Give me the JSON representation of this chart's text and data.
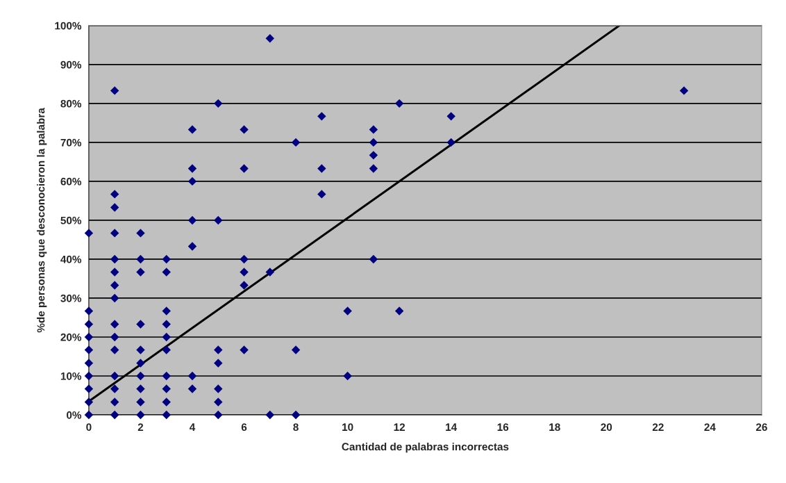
{
  "chart_data": {
    "type": "scatter",
    "xlabel": "Cantidad de palabras incorrectas",
    "ylabel": "%de personas que desconocieron la palabra",
    "xlim": [
      0,
      26
    ],
    "xticks": [
      0,
      2,
      4,
      6,
      8,
      10,
      12,
      14,
      16,
      18,
      20,
      22,
      24,
      26
    ],
    "ylim": [
      0,
      100
    ],
    "yticks": [
      {
        "value": 0,
        "label": "0%"
      },
      {
        "value": 10,
        "label": "10%"
      },
      {
        "value": 20,
        "label": "20%"
      },
      {
        "value": 30,
        "label": "30%"
      },
      {
        "value": 40,
        "label": "40%"
      },
      {
        "value": 50,
        "label": "50%"
      },
      {
        "value": 60,
        "label": "60%"
      },
      {
        "value": 70,
        "label": "70%"
      },
      {
        "value": 80,
        "label": "80%"
      },
      {
        "value": 90,
        "label": "90%"
      },
      {
        "value": 100,
        "label": "100%"
      }
    ],
    "grid": "y",
    "marker": "diamond",
    "series": [
      {
        "color": "#000080",
        "x": [
          0,
          0,
          0,
          0,
          0,
          0,
          0,
          0,
          0,
          0,
          1,
          1,
          1,
          1,
          1,
          1,
          1,
          1,
          1,
          1,
          1,
          1,
          1,
          1,
          1,
          2,
          2,
          2,
          2,
          2,
          2,
          2,
          2,
          2,
          2,
          3,
          3,
          3,
          3,
          3,
          3,
          3,
          3,
          3,
          3,
          4,
          4,
          4,
          4,
          4,
          4,
          4,
          5,
          5,
          5,
          5,
          5,
          5,
          5,
          6,
          6,
          6,
          6,
          6,
          6,
          7,
          7,
          7,
          8,
          8,
          8,
          9,
          9,
          9,
          10,
          10,
          11,
          11,
          11,
          11,
          11,
          12,
          12,
          14,
          14,
          23
        ],
        "values": [
          46.7,
          26.7,
          23.3,
          20,
          16.7,
          13.3,
          10,
          6.7,
          3.3,
          0,
          83.3,
          56.7,
          53.3,
          46.7,
          40,
          36.7,
          33.3,
          30,
          23.3,
          20,
          16.7,
          10,
          6.7,
          3.3,
          0,
          46.7,
          40,
          36.7,
          23.3,
          16.7,
          13.3,
          10,
          6.7,
          3.3,
          0,
          40,
          36.7,
          26.7,
          23.3,
          20,
          16.7,
          10,
          6.7,
          3.3,
          0,
          73.3,
          63.3,
          60,
          50,
          43.3,
          10,
          6.7,
          80,
          50,
          16.7,
          13.3,
          6.7,
          3.3,
          0,
          73.3,
          63.3,
          40,
          36.7,
          33.3,
          16.7,
          96.7,
          36.7,
          0,
          70,
          16.7,
          0,
          76.7,
          63.3,
          56.7,
          26.7,
          10,
          73.3,
          70,
          66.7,
          63.3,
          40,
          80,
          26.7,
          76.7,
          70,
          83.3
        ]
      },
      {
        "type": "line",
        "color": "#000000",
        "x": [
          0,
          20.5
        ],
        "values": [
          3.5,
          100
        ],
        "marker": "none",
        "line_style": "solid"
      }
    ]
  }
}
